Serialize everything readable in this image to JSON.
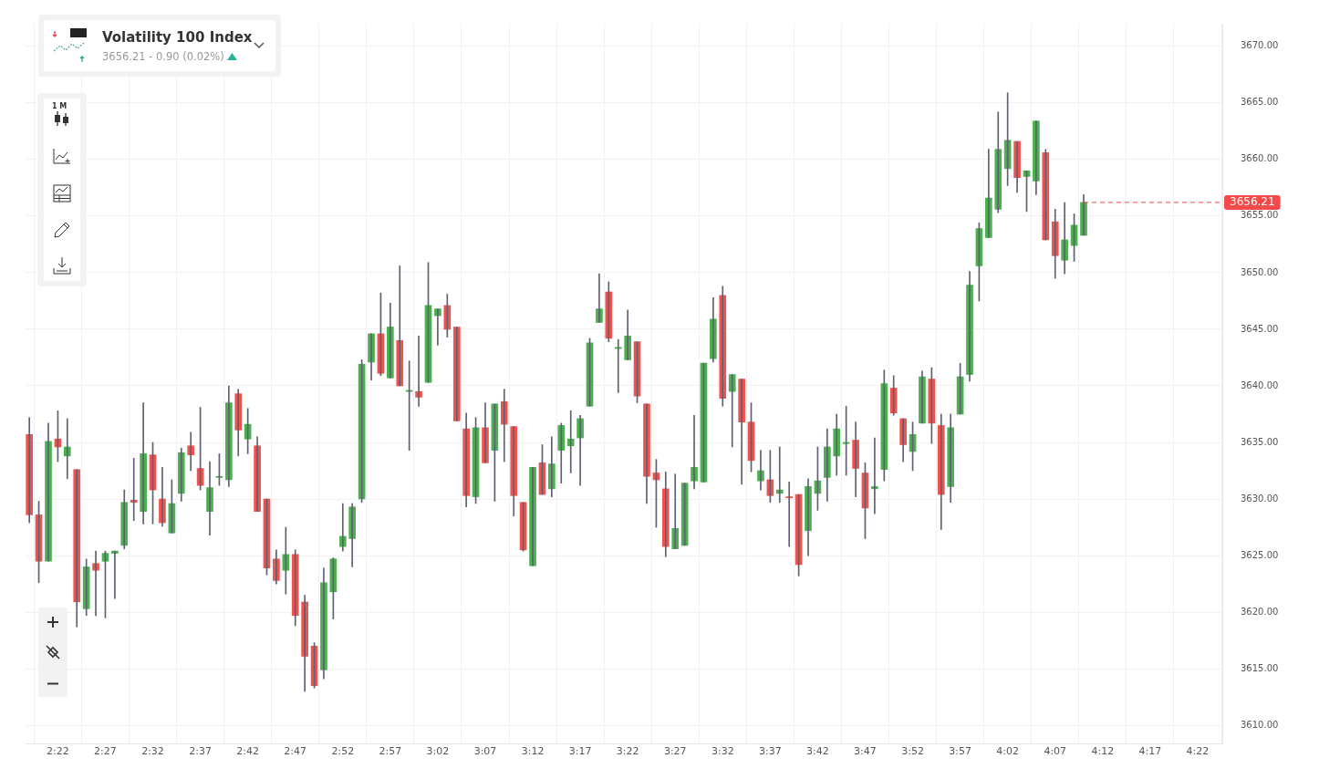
{
  "chart_data": {
    "type": "candlestick",
    "title": "Volatility 100 Index",
    "subtitle": "3656.21 - 0.90 (0.02%)",
    "annotations": [
      "1 M"
    ],
    "x": [
      2.3167,
      2.3333,
      2.35,
      2.3667,
      2.3833,
      2.4,
      2.4167,
      2.4333,
      2.45,
      2.4667,
      2.4833,
      2.5,
      2.5167,
      2.5333,
      2.55,
      2.5667,
      2.5833,
      2.6,
      2.6167,
      2.6333,
      2.65,
      2.6667,
      2.6833,
      2.7,
      2.7167,
      2.7333,
      2.75,
      2.7667,
      2.7833,
      2.8,
      2.8167,
      2.8333,
      2.85,
      2.8667,
      2.8833,
      2.9,
      2.9167,
      2.9333,
      2.95,
      2.9667,
      2.9833,
      3.0,
      3.0167,
      3.0333,
      3.05,
      3.0667,
      3.0833,
      3.1,
      3.1167,
      3.1333,
      3.15,
      3.1667,
      3.1833,
      3.2,
      3.2167,
      3.2333,
      3.25,
      3.2667,
      3.2833,
      3.3,
      3.3167,
      3.3333,
      3.35,
      3.3667,
      3.3833,
      3.4,
      3.4167,
      3.4333,
      3.45,
      3.4667,
      3.4833,
      3.5,
      3.5167,
      3.5333,
      3.55,
      3.5667,
      3.5833,
      3.6,
      3.6167,
      3.6333,
      3.65,
      3.6667,
      3.6833,
      3.7,
      3.7167,
      3.7333,
      3.75,
      3.7667,
      3.7833,
      3.8,
      3.8167,
      3.8333,
      3.85,
      3.8667,
      3.8833,
      3.9,
      3.9167,
      3.9333,
      3.95,
      3.9667,
      3.9833,
      4.0,
      4.0167,
      4.0333,
      4.05,
      4.0667,
      4.0833,
      4.1,
      4.1167,
      4.1333,
      4.15,
      4.1667
    ],
    "ohlc": [
      [
        3635.7,
        3637.2,
        3627.9,
        3628.6
      ],
      [
        3628.6,
        3629.8,
        3622.6,
        3624.5
      ],
      [
        3624.5,
        3636.7,
        3624.5,
        3635.1
      ],
      [
        3635.3,
        3637.8,
        3633.3,
        3634.6
      ],
      [
        3633.8,
        3637.1,
        3631.8,
        3634.6
      ],
      [
        3632.6,
        3632.6,
        3618.7,
        3620.9
      ],
      [
        3620.3,
        3624.7,
        3619.7,
        3624.0
      ],
      [
        3624.3,
        3625.4,
        3619.7,
        3623.7
      ],
      [
        3624.5,
        3625.4,
        3619.5,
        3625.2
      ],
      [
        3625.2,
        3625.4,
        3621.2,
        3625.4
      ],
      [
        3625.9,
        3630.8,
        3625.6,
        3629.7
      ],
      [
        3629.9,
        3633.6,
        3628.1,
        3629.7
      ],
      [
        3628.9,
        3638.5,
        3627.8,
        3634.0
      ],
      [
        3633.9,
        3635.0,
        3627.8,
        3630.8
      ],
      [
        3630.0,
        3632.8,
        3627.6,
        3627.9
      ],
      [
        3627.0,
        3631.7,
        3627.0,
        3629.6
      ],
      [
        3630.5,
        3634.5,
        3629.8,
        3634.1
      ],
      [
        3634.7,
        3635.9,
        3632.5,
        3633.9
      ],
      [
        3632.7,
        3638.1,
        3630.8,
        3631.2
      ],
      [
        3628.9,
        3633.3,
        3626.8,
        3631.0
      ],
      [
        3631.9,
        3634.0,
        3631.2,
        3632.0
      ],
      [
        3631.7,
        3640.0,
        3631.1,
        3638.5
      ],
      [
        3639.3,
        3639.7,
        3633.8,
        3636.1
      ],
      [
        3635.3,
        3638.0,
        3634.0,
        3636.6
      ],
      [
        3634.7,
        3635.5,
        3628.9,
        3628.9
      ],
      [
        3630.0,
        3630.0,
        3623.3,
        3623.9
      ],
      [
        3624.7,
        3625.5,
        3622.5,
        3622.8
      ],
      [
        3623.7,
        3627.5,
        3621.6,
        3625.1
      ],
      [
        3625.1,
        3625.5,
        3618.8,
        3619.7
      ],
      [
        3620.9,
        3621.5,
        3613.0,
        3616.1
      ],
      [
        3617.0,
        3617.3,
        3613.3,
        3613.5
      ],
      [
        3614.9,
        3623.9,
        3614.1,
        3622.6
      ],
      [
        3621.8,
        3624.8,
        3619.4,
        3624.7
      ],
      [
        3625.8,
        3629.6,
        3625.4,
        3626.7
      ],
      [
        3626.5,
        3629.6,
        3624.0,
        3629.3
      ],
      [
        3630.0,
        3642.3,
        3629.7,
        3641.9
      ],
      [
        3642.1,
        3644.6,
        3640.5,
        3644.6
      ],
      [
        3644.6,
        3648.2,
        3640.9,
        3641.1
      ],
      [
        3640.7,
        3647.3,
        3640.7,
        3645.2
      ],
      [
        3644.0,
        3650.6,
        3640.0,
        3640.0
      ],
      [
        3639.5,
        3642.2,
        3634.3,
        3639.6
      ],
      [
        3639.5,
        3644.4,
        3638.2,
        3639.0
      ],
      [
        3640.3,
        3650.9,
        3640.3,
        3647.1
      ],
      [
        3646.2,
        3646.8,
        3643.6,
        3646.8
      ],
      [
        3647.1,
        3648.1,
        3644.3,
        3645.0
      ],
      [
        3645.2,
        3645.2,
        3636.9,
        3636.9
      ],
      [
        3636.2,
        3637.6,
        3629.3,
        3630.3
      ],
      [
        3630.2,
        3637.2,
        3629.6,
        3636.3
      ],
      [
        3636.3,
        3638.5,
        3633.2,
        3633.2
      ],
      [
        3634.3,
        3638.4,
        3629.8,
        3638.4
      ],
      [
        3638.6,
        3639.7,
        3633.3,
        3636.6
      ],
      [
        3636.4,
        3636.4,
        3628.5,
        3630.3
      ],
      [
        3629.7,
        3629.7,
        3625.4,
        3625.5
      ],
      [
        3624.1,
        3632.8,
        3624.1,
        3632.8
      ],
      [
        3633.2,
        3634.8,
        3630.4,
        3630.4
      ],
      [
        3630.9,
        3635.5,
        3630.2,
        3633.1
      ],
      [
        3634.3,
        3636.7,
        3631.4,
        3636.5
      ],
      [
        3634.7,
        3637.8,
        3632.3,
        3635.3
      ],
      [
        3635.4,
        3637.4,
        3631.2,
        3637.1
      ],
      [
        3638.2,
        3644.2,
        3638.2,
        3643.8
      ],
      [
        3645.6,
        3649.9,
        3645.6,
        3646.8
      ],
      [
        3648.3,
        3649.2,
        3643.9,
        3644.2
      ],
      [
        3643.3,
        3644.1,
        3639.4,
        3643.4
      ],
      [
        3642.3,
        3646.7,
        3642.3,
        3644.4
      ],
      [
        3643.9,
        3643.9,
        3638.5,
        3639.1
      ],
      [
        3638.4,
        3638.4,
        3629.6,
        3632.0
      ],
      [
        3632.3,
        3633.5,
        3627.5,
        3631.7
      ],
      [
        3630.9,
        3632.4,
        3624.9,
        3625.8
      ],
      [
        3625.6,
        3632.2,
        3625.6,
        3627.4
      ],
      [
        3625.9,
        3631.4,
        3625.9,
        3631.4
      ],
      [
        3631.6,
        3637.4,
        3630.9,
        3632.8
      ],
      [
        3631.5,
        3642.0,
        3631.5,
        3642.0
      ],
      [
        3642.4,
        3647.8,
        3642.1,
        3645.9
      ],
      [
        3648.0,
        3648.8,
        3638.2,
        3638.9
      ],
      [
        3639.5,
        3641.0,
        3634.6,
        3641.0
      ],
      [
        3640.6,
        3640.6,
        3631.3,
        3636.8
      ],
      [
        3636.8,
        3638.5,
        3632.4,
        3633.4
      ],
      [
        3631.6,
        3634.3,
        3630.8,
        3632.5
      ],
      [
        3631.7,
        3634.3,
        3629.7,
        3630.3
      ],
      [
        3630.5,
        3634.6,
        3629.7,
        3630.8
      ],
      [
        3630.2,
        3631.5,
        3625.8,
        3630.1
      ],
      [
        3630.4,
        3630.4,
        3623.2,
        3624.2
      ],
      [
        3627.2,
        3631.8,
        3625.0,
        3631.1
      ],
      [
        3630.5,
        3634.6,
        3629.0,
        3631.6
      ],
      [
        3631.9,
        3636.2,
        3629.8,
        3634.6
      ],
      [
        3633.8,
        3637.5,
        3632.1,
        3636.2
      ],
      [
        3634.9,
        3638.2,
        3632.1,
        3635.0
      ],
      [
        3635.2,
        3636.8,
        3630.2,
        3632.7
      ],
      [
        3632.3,
        3633.2,
        3626.5,
        3629.2
      ],
      [
        3630.9,
        3635.4,
        3628.7,
        3631.1
      ],
      [
        3632.6,
        3641.4,
        3631.6,
        3640.2
      ],
      [
        3639.8,
        3640.9,
        3637.4,
        3637.6
      ],
      [
        3637.1,
        3637.1,
        3633.3,
        3634.8
      ],
      [
        3634.2,
        3636.8,
        3632.5,
        3635.7
      ],
      [
        3636.7,
        3641.3,
        3636.7,
        3640.8
      ],
      [
        3640.6,
        3641.6,
        3634.9,
        3636.7
      ],
      [
        3636.5,
        3637.5,
        3627.3,
        3630.4
      ],
      [
        3631.1,
        3637.5,
        3629.7,
        3636.3
      ],
      [
        3637.5,
        3642.0,
        3637.5,
        3640.8
      ],
      [
        3641.0,
        3650.1,
        3640.4,
        3648.9
      ],
      [
        3650.6,
        3654.4,
        3647.5,
        3653.9
      ],
      [
        3653.1,
        3660.9,
        3653.1,
        3656.6
      ],
      [
        3655.6,
        3664.2,
        3655.3,
        3660.9
      ],
      [
        3659.2,
        3665.9,
        3657.7,
        3661.7
      ],
      [
        3661.6,
        3661.6,
        3657.1,
        3658.4
      ],
      [
        3658.5,
        3659.0,
        3655.4,
        3659.0
      ],
      [
        3658.1,
        3663.4,
        3656.9,
        3663.4
      ],
      [
        3660.6,
        3660.9,
        3652.9,
        3652.9
      ],
      [
        3654.5,
        3655.6,
        3649.5,
        3651.5
      ],
      [
        3651.1,
        3656.2,
        3649.9,
        3652.9
      ],
      [
        3652.4,
        3655.2,
        3651.0,
        3654.2
      ],
      [
        3653.3,
        3656.9,
        3653.3,
        3656.21
      ]
    ],
    "colors": [
      "#ef5350",
      "#ef5350",
      "#4caf50",
      "#ef5350",
      "#4caf50",
      "#ef5350",
      "#4caf50",
      "#ef5350",
      "#4caf50",
      "#4caf50",
      "#4caf50",
      "#ef5350",
      "#4caf50",
      "#ef5350",
      "#ef5350",
      "#4caf50",
      "#4caf50",
      "#ef5350",
      "#ef5350",
      "#4caf50",
      "#4caf50",
      "#4caf50",
      "#ef5350",
      "#4caf50",
      "#ef5350",
      "#ef5350",
      "#ef5350",
      "#4caf50",
      "#ef5350",
      "#ef5350",
      "#ef5350",
      "#4caf50",
      "#4caf50",
      "#4caf50",
      "#4caf50",
      "#4caf50",
      "#4caf50",
      "#ef5350",
      "#4caf50",
      "#ef5350",
      "#4caf50",
      "#ef5350",
      "#4caf50",
      "#4caf50",
      "#ef5350",
      "#ef5350",
      "#ef5350",
      "#4caf50",
      "#ef5350",
      "#4caf50",
      "#ef5350",
      "#ef5350",
      "#ef5350",
      "#4caf50",
      "#ef5350",
      "#4caf50",
      "#4caf50",
      "#4caf50",
      "#4caf50",
      "#4caf50",
      "#4caf50",
      "#ef5350",
      "#4caf50",
      "#4caf50",
      "#ef5350",
      "#ef5350",
      "#ef5350",
      "#ef5350",
      "#4caf50",
      "#4caf50",
      "#4caf50",
      "#4caf50",
      "#4caf50",
      "#ef5350",
      "#4caf50",
      "#ef5350",
      "#ef5350",
      "#4caf50",
      "#ef5350",
      "#4caf50",
      "#ef5350",
      "#ef5350",
      "#4caf50",
      "#4caf50",
      "#4caf50",
      "#4caf50",
      "#4caf50",
      "#ef5350",
      "#ef5350",
      "#4caf50",
      "#4caf50",
      "#ef5350",
      "#ef5350",
      "#4caf50",
      "#4caf50",
      "#ef5350",
      "#ef5350",
      "#4caf50",
      "#4caf50",
      "#4caf50",
      "#4caf50",
      "#4caf50",
      "#4caf50",
      "#4caf50",
      "#ef5350",
      "#4caf50",
      "#4caf50",
      "#ef5350",
      "#ef5350",
      "#4caf50",
      "#4caf50",
      "#4caf50"
    ],
    "xlim": [
      2.31,
      4.41
    ],
    "xticks": [
      {
        "value": 2.3667,
        "label": "2:22"
      },
      {
        "value": 2.45,
        "label": "2:27"
      },
      {
        "value": 2.5333,
        "label": "2:32"
      },
      {
        "value": 2.6167,
        "label": "2:37"
      },
      {
        "value": 2.7,
        "label": "2:42"
      },
      {
        "value": 2.7833,
        "label": "2:47"
      },
      {
        "value": 2.8667,
        "label": "2:52"
      },
      {
        "value": 2.95,
        "label": "2:57"
      },
      {
        "value": 3.0333,
        "label": "3:02"
      },
      {
        "value": 3.1167,
        "label": "3:07"
      },
      {
        "value": 3.2,
        "label": "3:12"
      },
      {
        "value": 3.2833,
        "label": "3:17"
      },
      {
        "value": 3.3667,
        "label": "3:22"
      },
      {
        "value": 3.45,
        "label": "3:27"
      },
      {
        "value": 3.5333,
        "label": "3:32"
      },
      {
        "value": 3.6167,
        "label": "3:37"
      },
      {
        "value": 3.7,
        "label": "3:42"
      },
      {
        "value": 3.7833,
        "label": "3:47"
      },
      {
        "value": 3.8667,
        "label": "3:52"
      },
      {
        "value": 3.95,
        "label": "3:57"
      },
      {
        "value": 4.0333,
        "label": "4:02"
      },
      {
        "value": 4.1167,
        "label": "4:07"
      },
      {
        "value": 4.2,
        "label": "4:12"
      },
      {
        "value": 4.2833,
        "label": "4:17"
      },
      {
        "value": 4.3667,
        "label": "4:22"
      }
    ],
    "ylim": [
      3608.4,
      3672
    ],
    "yticks": [
      {
        "value": 3610,
        "label": "3610.00"
      },
      {
        "value": 3615,
        "label": "3615.00"
      },
      {
        "value": 3620,
        "label": "3620.00"
      },
      {
        "value": 3625,
        "label": "3625.00"
      },
      {
        "value": 3630,
        "label": "3630.00"
      },
      {
        "value": 3635,
        "label": "3635.00"
      },
      {
        "value": 3640,
        "label": "3640.00"
      },
      {
        "value": 3645,
        "label": "3645.00"
      },
      {
        "value": 3650,
        "label": "3650.00"
      },
      {
        "value": 3655,
        "label": "3655.00"
      },
      {
        "value": 3660,
        "label": "3660.00"
      },
      {
        "value": 3665,
        "label": "3665.00"
      },
      {
        "value": 3670,
        "label": "3670.00"
      }
    ],
    "ref_lines": [
      {
        "axis": "y",
        "value": 3656.21,
        "label": "3656.21",
        "color": "#f44a4a",
        "line_style": "dashed"
      }
    ],
    "grid": true,
    "legend": false
  }
}
